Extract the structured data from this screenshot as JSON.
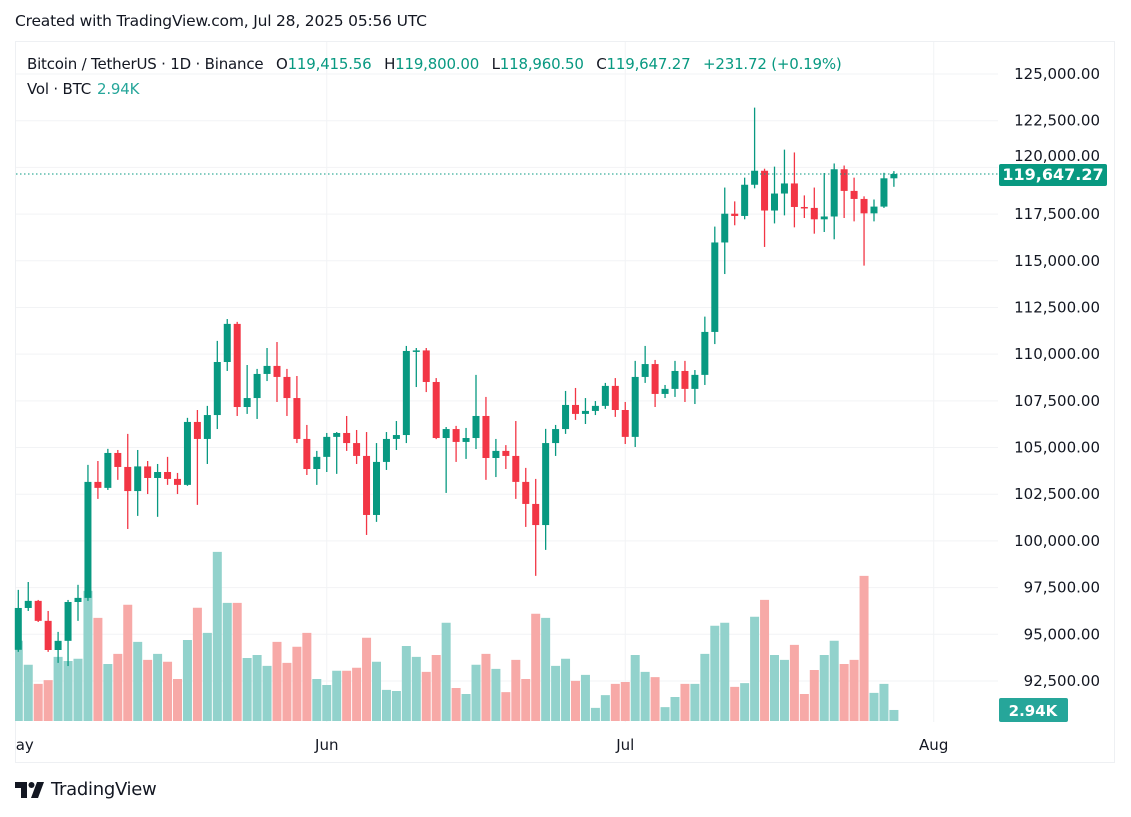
{
  "header": {
    "created": "Created with TradingView.com, Jul 28, 2025 05:56 UTC"
  },
  "legend": {
    "symbol": "Bitcoin / TetherUS · 1D · Binance",
    "o_label": "O",
    "o_value": "119,415.56",
    "h_label": "H",
    "h_value": "119,800.00",
    "l_label": "L",
    "l_value": "118,960.50",
    "c_label": "C",
    "c_value": "119,647.27",
    "change": "+231.72 (+0.19%)",
    "vol_label": "Vol · BTC",
    "vol_value": "2.94K"
  },
  "price_axis": {
    "ticks": [
      "125,000.00",
      "122,500.00",
      "120,000.00",
      "117,500.00",
      "115,000.00",
      "112,500.00",
      "110,000.00",
      "107,500.00",
      "105,000.00",
      "102,500.00",
      "100,000.00",
      "97,500.00",
      "95,000.00",
      "92,500.00"
    ],
    "tick_values": [
      125000,
      122500,
      120000,
      117500,
      115000,
      112500,
      110000,
      107500,
      105000,
      102500,
      100000,
      97500,
      95000,
      92500
    ],
    "last_price_label": "119,647.27",
    "last_volume_label": "2.94K"
  },
  "time_axis": {
    "labels": [
      "May",
      "Jun",
      "Jul",
      "Aug"
    ],
    "label_day_index": [
      0,
      31,
      61,
      92
    ]
  },
  "footer": {
    "brand": "TradingView"
  },
  "colors": {
    "up": "#089981",
    "down": "#F23645",
    "vol_up": "#92d2cc",
    "vol_down": "#f7a9a7",
    "last_price_bg": "#089981",
    "vol_label_bg": "#26a69a",
    "grid": "#f2f3f5"
  },
  "chart_data": {
    "type": "candlestick",
    "title": "Bitcoin / TetherUS · 1D · Binance",
    "x_start": "2025-05-01",
    "interval": "1D",
    "ylim": [
      91000,
      126000
    ],
    "volume_unit": "K BTC",
    "fields": [
      "open",
      "high",
      "low",
      "close",
      "volume"
    ],
    "candles": [
      [
        94170,
        97380,
        94060,
        96410,
        21.4
      ],
      [
        96410,
        97800,
        96250,
        96790,
        15.0
      ],
      [
        96790,
        96840,
        95660,
        95720,
        9.9
      ],
      [
        95720,
        96250,
        94060,
        94160,
        10.9
      ],
      [
        94160,
        95130,
        93470,
        94650,
        17.1
      ],
      [
        94650,
        96840,
        93300,
        96730,
        16.0
      ],
      [
        96730,
        97650,
        95720,
        96950,
        16.6
      ],
      [
        96950,
        104070,
        96790,
        103160,
        34.7
      ],
      [
        103160,
        104280,
        102250,
        102840,
        27.5
      ],
      [
        102840,
        104930,
        102730,
        104710,
        15.2
      ],
      [
        104710,
        104870,
        103270,
        103960,
        17.9
      ],
      [
        103960,
        105730,
        100640,
        102670,
        31.0
      ],
      [
        102670,
        104870,
        101340,
        103990,
        21.1
      ],
      [
        103990,
        104280,
        102510,
        103370,
        16.3
      ],
      [
        103370,
        104120,
        101290,
        103690,
        17.9
      ],
      [
        103690,
        104500,
        103000,
        103320,
        15.8
      ],
      [
        103320,
        103640,
        102510,
        103000,
        11.2
      ],
      [
        103000,
        106590,
        102950,
        106370,
        21.6
      ],
      [
        106370,
        107010,
        101930,
        105460,
        30.2
      ],
      [
        105460,
        107230,
        104120,
        106740,
        23.5
      ],
      [
        106740,
        110710,
        105990,
        109580,
        45.1
      ],
      [
        109580,
        111880,
        109100,
        111620,
        31.5
      ],
      [
        111620,
        111730,
        106690,
        107170,
        31.5
      ],
      [
        107170,
        109420,
        106800,
        107650,
        16.8
      ],
      [
        107650,
        109210,
        106530,
        108940,
        17.6
      ],
      [
        108940,
        110330,
        108560,
        109370,
        14.7
      ],
      [
        109370,
        110650,
        107440,
        108780,
        21.1
      ],
      [
        108780,
        109210,
        106690,
        107650,
        15.5
      ],
      [
        107650,
        108830,
        105240,
        105460,
        19.8
      ],
      [
        105460,
        106210,
        103530,
        103850,
        23.5
      ],
      [
        103850,
        104820,
        103000,
        104500,
        11.2
      ],
      [
        104500,
        105780,
        103690,
        105570,
        9.6
      ],
      [
        105570,
        105830,
        103590,
        105780,
        13.4
      ],
      [
        105780,
        106690,
        104820,
        105240,
        13.4
      ],
      [
        105240,
        105940,
        104120,
        104550,
        14.2
      ],
      [
        104550,
        105830,
        100320,
        101390,
        22.2
      ],
      [
        101390,
        105240,
        101020,
        104230,
        15.8
      ],
      [
        104230,
        105830,
        103800,
        105460,
        8.3
      ],
      [
        105460,
        106420,
        104870,
        105670,
        8.0
      ],
      [
        105670,
        110440,
        105240,
        110170,
        20.0
      ],
      [
        110170,
        110330,
        108240,
        110200,
        17.1
      ],
      [
        110200,
        110330,
        107970,
        108510,
        13.1
      ],
      [
        108510,
        108720,
        105450,
        105510,
        17.6
      ],
      [
        105510,
        106100,
        102570,
        105990,
        26.2
      ],
      [
        105990,
        106160,
        104230,
        105300,
        8.8
      ],
      [
        105300,
        106050,
        104390,
        105510,
        7.2
      ],
      [
        105510,
        108890,
        104920,
        106690,
        15.0
      ],
      [
        106690,
        107710,
        103270,
        104440,
        17.9
      ],
      [
        104440,
        105460,
        103420,
        104820,
        13.9
      ],
      [
        104820,
        105130,
        103850,
        104550,
        7.7
      ],
      [
        104550,
        106420,
        102250,
        103160,
        16.3
      ],
      [
        103160,
        103910,
        100750,
        101980,
        11.2
      ],
      [
        101980,
        103320,
        98130,
        100850,
        28.6
      ],
      [
        100850,
        106000,
        99520,
        105240,
        27.5
      ],
      [
        105240,
        106210,
        104550,
        105990,
        14.7
      ],
      [
        105990,
        108030,
        105730,
        107280,
        16.6
      ],
      [
        107280,
        108190,
        106480,
        106800,
        10.7
      ],
      [
        106800,
        107650,
        106260,
        106960,
        12.3
      ],
      [
        106960,
        107490,
        106740,
        107230,
        3.5
      ],
      [
        107230,
        108460,
        107070,
        108300,
        6.9
      ],
      [
        108300,
        108720,
        106640,
        107010,
        9.9
      ],
      [
        107010,
        107440,
        105190,
        105570,
        10.4
      ],
      [
        105570,
        109640,
        105030,
        108780,
        17.6
      ],
      [
        108780,
        110440,
        108460,
        109470,
        13.1
      ],
      [
        109470,
        109690,
        107170,
        107870,
        11.7
      ],
      [
        107870,
        108350,
        107650,
        108140,
        3.7
      ],
      [
        108140,
        109640,
        107710,
        109100,
        6.4
      ],
      [
        109100,
        109640,
        107440,
        108140,
        9.9
      ],
      [
        108140,
        109150,
        107330,
        108890,
        9.9
      ],
      [
        108890,
        112010,
        108350,
        111190,
        17.9
      ],
      [
        111190,
        116830,
        110540,
        115980,
        25.4
      ],
      [
        115980,
        118920,
        114290,
        117520,
        26.2
      ],
      [
        117520,
        118180,
        116900,
        117400,
        9.1
      ],
      [
        117400,
        119450,
        117220,
        119070,
        10.1
      ],
      [
        119070,
        123200,
        118880,
        119820,
        27.8
      ],
      [
        119820,
        119930,
        115740,
        117690,
        32.3
      ],
      [
        117690,
        120040,
        117000,
        118600,
        17.6
      ],
      [
        118600,
        120950,
        117430,
        119140,
        16.3
      ],
      [
        119140,
        120800,
        116790,
        117880,
        20.3
      ],
      [
        117880,
        118500,
        117290,
        117830,
        7.2
      ],
      [
        117830,
        118920,
        116450,
        117220,
        13.6
      ],
      [
        117220,
        119700,
        116540,
        117370,
        17.6
      ],
      [
        117370,
        120210,
        116150,
        119900,
        21.4
      ],
      [
        119900,
        120100,
        117290,
        118740,
        15.2
      ],
      [
        118740,
        119450,
        117110,
        118310,
        16.3
      ],
      [
        118310,
        118450,
        114740,
        117540,
        38.7
      ],
      [
        117540,
        118280,
        117110,
        117900,
        7.5
      ],
      [
        117900,
        119710,
        117830,
        119415.56,
        9.9
      ],
      [
        119415.56,
        119800,
        118960.5,
        119647.27,
        2.94
      ]
    ],
    "last_price": 119647.27
  }
}
